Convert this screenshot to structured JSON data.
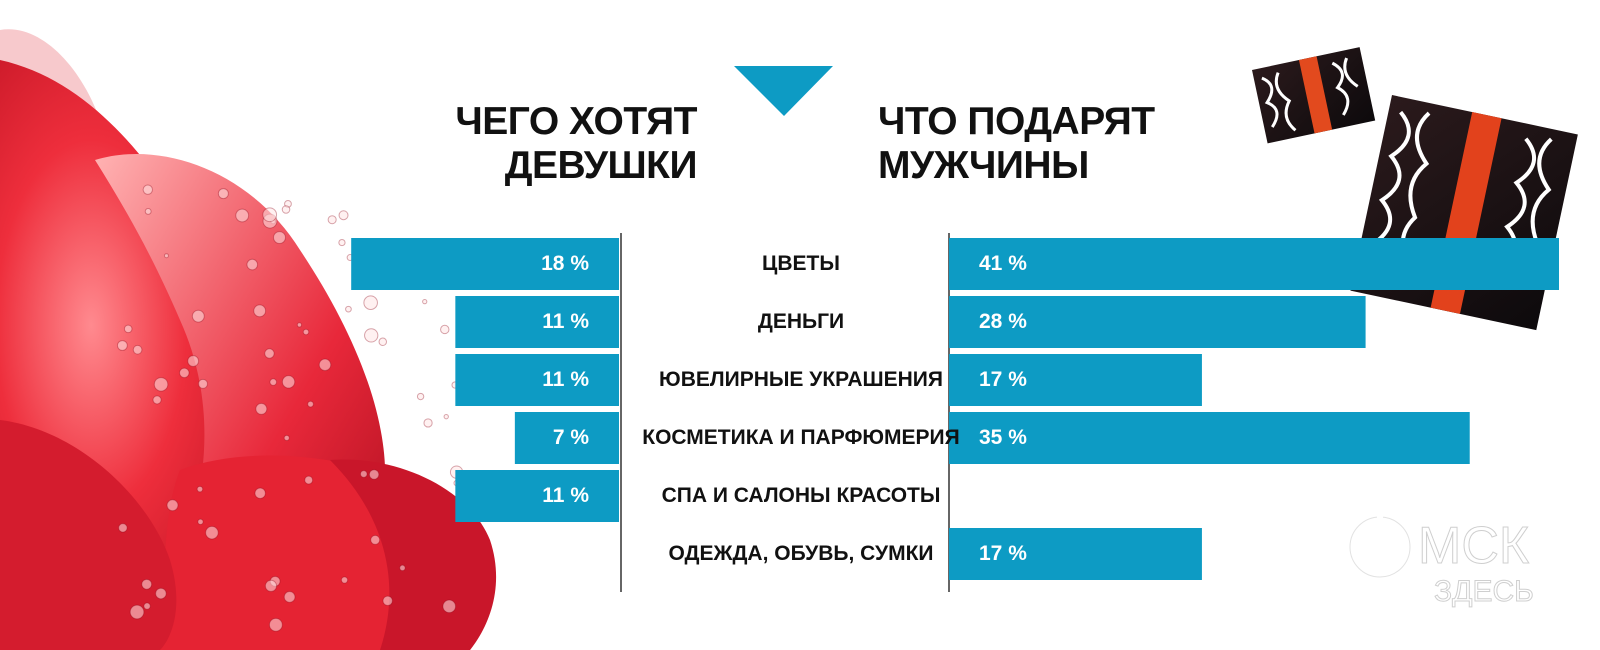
{
  "headers": {
    "left": [
      "ЧЕГО ХОТЯТ",
      "ДЕВУШКИ"
    ],
    "right": [
      "ЧТО ПОДАРЯТ",
      "МУЖЧИНЫ"
    ]
  },
  "watermark": {
    "line1": "МСК",
    "line2": "ЗДЕСЬ"
  },
  "colors": {
    "bar": "#0d9bc4",
    "axis": "#666666",
    "triangle": "#0d9bc4",
    "text": "#111111"
  },
  "chart_data": {
    "type": "bar",
    "categories": [
      "ЦВЕТЫ",
      "ДЕНЬГИ",
      "ЮВЕЛИРНЫЕ УКРАШЕНИЯ",
      "КОСМЕТИКА И ПАРФЮМЕРИЯ",
      "СПА И САЛОНЫ КРАСОТЫ",
      "ОДЕЖДА, ОБУВЬ, СУМКИ"
    ],
    "series": [
      {
        "values": [
          18,
          11,
          11,
          7,
          11,
          null
        ],
        "labels": [
          "18 %",
          "11 %",
          "11 %",
          "7 %",
          "11 %",
          ""
        ]
      },
      {
        "values": [
          41,
          28,
          17,
          35,
          null,
          17
        ],
        "labels": [
          "41 %",
          "28 %",
          "17 %",
          "35 %",
          "",
          "17 %"
        ]
      }
    ],
    "title": "",
    "xlabel": "",
    "ylabel": "",
    "ylim": [
      0,
      41
    ]
  }
}
